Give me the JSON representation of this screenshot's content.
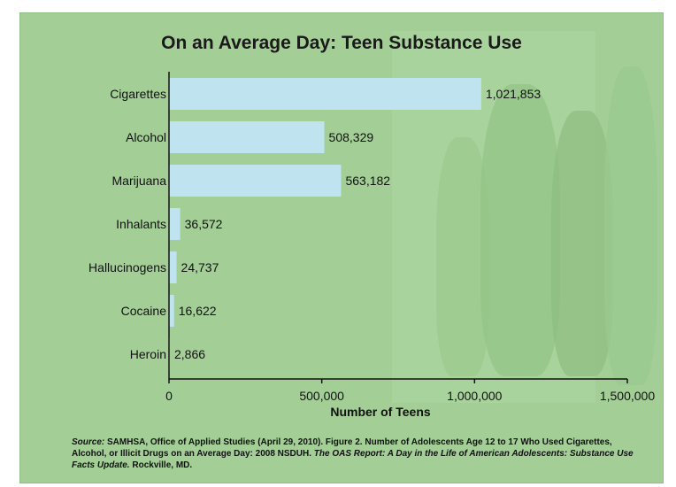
{
  "chart_data": {
    "type": "bar",
    "orientation": "horizontal",
    "title": "On an Average Day:  Teen Substance Use",
    "xlabel": "Number of Teens",
    "ylabel": "",
    "categories": [
      "Cigarettes",
      "Alcohol",
      "Marijuana",
      "Inhalants",
      "Hallucinogens",
      "Cocaine",
      "Heroin"
    ],
    "values": [
      1021853,
      508329,
      563182,
      36572,
      24737,
      16622,
      2866
    ],
    "value_labels": [
      "1,021,853",
      "508,329",
      "563,182",
      "36,572",
      "24,737",
      "16,622",
      "2,866"
    ],
    "xlim": [
      0,
      1500000
    ],
    "xticks": [
      0,
      500000,
      1000000,
      1500000
    ],
    "xtick_labels": [
      "0",
      "500,000",
      "1,000,000",
      "1,500,000"
    ],
    "grid": false,
    "legend": "none"
  },
  "colors": {
    "bar": "#bfe4ef",
    "background": "#a3cf97"
  },
  "source": {
    "lead": "Source:",
    "text": "SAMHSA, Office of Applied Studies (April 29, 2010).  Figure 2.  Number of Adolescents Age 12 to 17 Who Used Cigarettes, Alcohol, or Illicit Drugs on an Average Day:  2008 NSDUH.",
    "report": "The OAS Report:  A Day in the Life of American Adolescents:  Substance Use Facts Update.",
    "location": "Rockville, MD."
  }
}
